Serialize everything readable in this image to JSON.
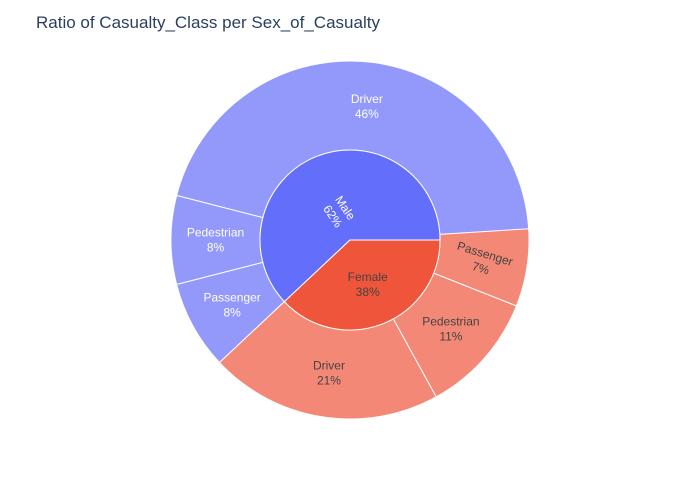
{
  "chart_data": {
    "type": "sunburst",
    "title": "Ratio of Casualty_Class per Sex_of_Casualty",
    "inner": [
      {
        "label": "Male",
        "percent_text": "62%",
        "value": 62,
        "color": "#636efa",
        "text_color": "#ffffff"
      },
      {
        "label": "Female",
        "percent_text": "38%",
        "value": 38,
        "color": "#ef553b",
        "text_color": "#444444"
      }
    ],
    "outer": [
      {
        "parent": "Male",
        "label": "Driver",
        "percent_text": "46%",
        "value": 46,
        "color": "#9299fb",
        "text_color": "#ffffff"
      },
      {
        "parent": "Male",
        "label": "Pedestrian",
        "percent_text": "8%",
        "value": 8,
        "color": "#9299fb",
        "text_color": "#ffffff"
      },
      {
        "parent": "Male",
        "label": "Passenger",
        "percent_text": "8%",
        "value": 8,
        "color": "#9299fb",
        "text_color": "#ffffff"
      },
      {
        "parent": "Female",
        "label": "Driver",
        "percent_text": "21%",
        "value": 21,
        "color": "#f48876",
        "text_color": "#444444"
      },
      {
        "parent": "Female",
        "label": "Pedestrian",
        "percent_text": "11%",
        "value": 11,
        "color": "#f48876",
        "text_color": "#444444"
      },
      {
        "parent": "Female",
        "label": "Passenger",
        "percent_text": "7%",
        "value": 7,
        "color": "#f48876",
        "text_color": "#444444"
      }
    ]
  }
}
